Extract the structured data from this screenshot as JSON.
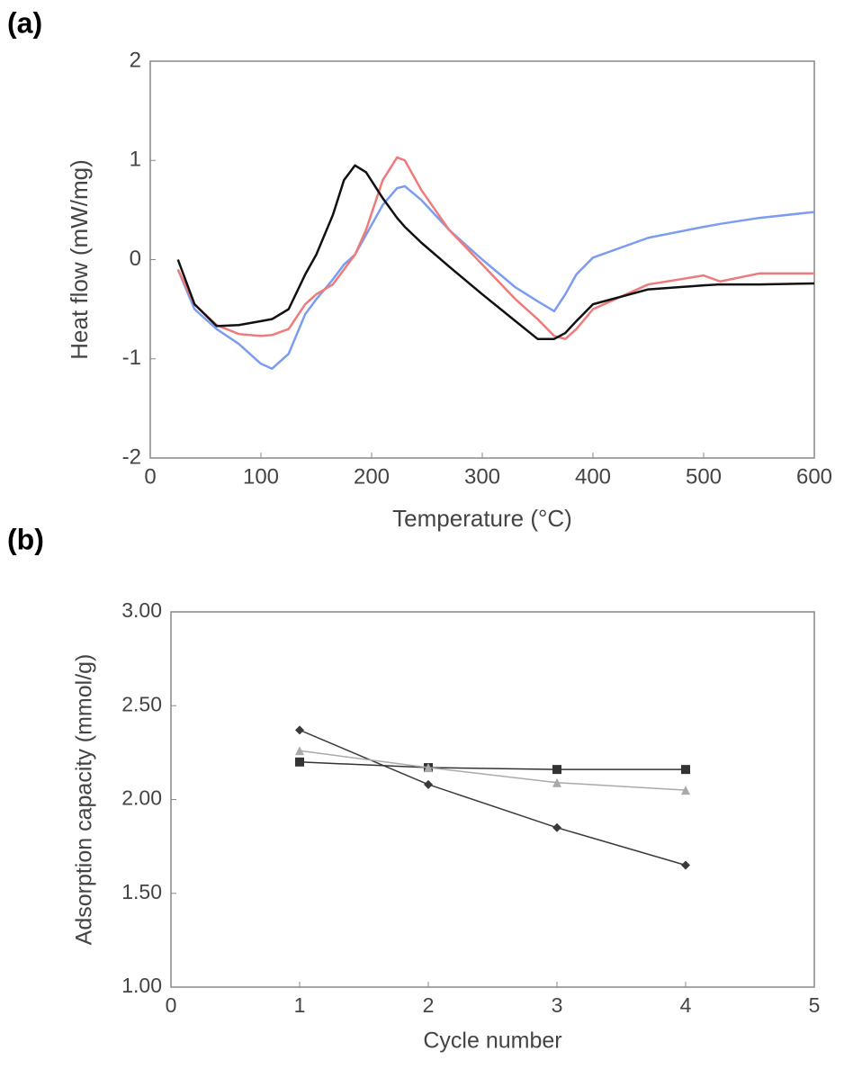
{
  "charts": [
    {
      "panel": "(a)",
      "chart_data": {
        "type": "line",
        "xlabel": "Temperature (°C)",
        "ylabel": "Heat flow (mW/mg)",
        "x": [
          25,
          40,
          60,
          80,
          100,
          110,
          125,
          140,
          150,
          165,
          175,
          185,
          195,
          210,
          223,
          230,
          245,
          270,
          300,
          330,
          350,
          365,
          375,
          385,
          400,
          450,
          500,
          515,
          550,
          600
        ],
        "series": [
          {
            "color": "#7b9cf0",
            "values": [
              -0.1,
              -0.5,
              -0.7,
              -0.85,
              -1.05,
              -1.1,
              -0.95,
              -0.55,
              -0.4,
              -0.2,
              -0.05,
              0.05,
              0.25,
              0.55,
              0.72,
              0.74,
              0.6,
              0.3,
              0,
              -0.28,
              -0.42,
              -0.52,
              -0.35,
              -0.15,
              0.02,
              0.22,
              0.33,
              0.36,
              0.42,
              0.48
            ]
          },
          {
            "color": "#f07a7a",
            "values": [
              -0.1,
              -0.45,
              -0.66,
              -0.75,
              -0.77,
              -0.76,
              -0.7,
              -0.45,
              -0.35,
              -0.25,
              -0.1,
              0.05,
              0.3,
              0.8,
              1.03,
              1.0,
              0.7,
              0.3,
              -0.05,
              -0.4,
              -0.6,
              -0.77,
              -0.8,
              -0.7,
              -0.5,
              -0.25,
              -0.16,
              -0.22,
              -0.14,
              -0.14
            ]
          },
          {
            "color": "#111111",
            "values": [
              0,
              -0.45,
              -0.67,
              -0.66,
              -0.62,
              -0.6,
              -0.5,
              -0.15,
              0.05,
              0.45,
              0.8,
              0.95,
              0.88,
              0.62,
              0.42,
              0.33,
              0.17,
              -0.07,
              -0.35,
              -0.62,
              -0.8,
              -0.8,
              -0.74,
              -0.62,
              -0.45,
              -0.3,
              -0.26,
              -0.25,
              -0.25,
              -0.24
            ]
          }
        ],
        "xlim": [
          0,
          600
        ],
        "xticks": [
          0,
          100,
          200,
          300,
          400,
          500,
          600
        ],
        "ylim": [
          -2,
          2
        ],
        "yticks": [
          -2,
          -1,
          0,
          1,
          2
        ],
        "grid": false
      }
    },
    {
      "panel": "(b)",
      "chart_data": {
        "type": "line",
        "xlabel": "Cycle number",
        "ylabel": "Adsorption capacity (mmol/g)",
        "x": [
          1,
          2,
          3,
          4
        ],
        "series": [
          {
            "color": "#3a3a3a",
            "marker": "diamond",
            "values": [
              2.37,
              2.08,
              1.85,
              1.65
            ]
          },
          {
            "color": "#333333",
            "marker": "square",
            "values": [
              2.2,
              2.17,
              2.16,
              2.16
            ]
          },
          {
            "color": "#aaaaaa",
            "marker": "triangle",
            "values": [
              2.26,
              2.17,
              2.09,
              2.05
            ]
          }
        ],
        "xlim": [
          0,
          5
        ],
        "xticks": [
          0,
          1,
          2,
          3,
          4,
          5
        ],
        "ylim": [
          1,
          3
        ],
        "yticks": [
          {
            "value": 1,
            "label": "1.00"
          },
          {
            "value": 1.5,
            "label": "1.50"
          },
          {
            "value": 2,
            "label": "2.00"
          },
          {
            "value": 2.5,
            "label": "2.50"
          },
          {
            "value": 3,
            "label": "3.00"
          }
        ],
        "grid": false
      }
    }
  ]
}
